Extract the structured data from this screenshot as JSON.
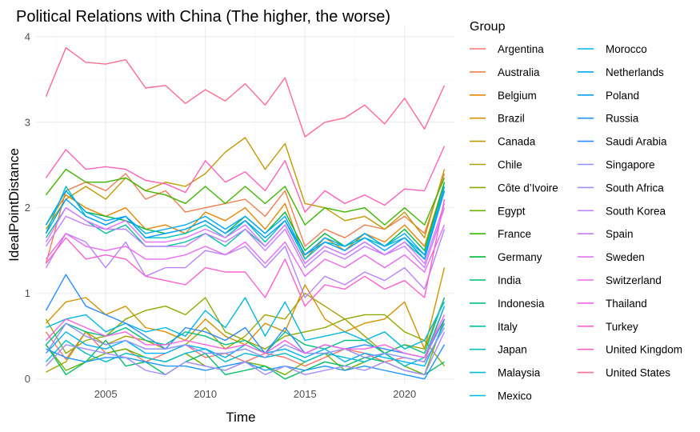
{
  "chart_data": {
    "type": "line",
    "title": "Political Relations with China (The higher, the worse)",
    "xlabel": "Time",
    "ylabel": "IdealPointDistance",
    "xlim": [
      2001.5,
      2022.5
    ],
    "ylim": [
      -0.05,
      4.12
    ],
    "x_ticks": [
      2005,
      2010,
      2015,
      2020
    ],
    "y_ticks": [
      0,
      1,
      2,
      3,
      4
    ],
    "grid": true,
    "legend_title": "Group",
    "legend_position": "right",
    "x": [
      2002,
      2003,
      2004,
      2005,
      2006,
      2007,
      2008,
      2009,
      2010,
      2011,
      2012,
      2013,
      2014,
      2015,
      2016,
      2017,
      2018,
      2019,
      2020,
      2021,
      2022
    ],
    "series": [
      {
        "name": "Argentina",
        "color": "#F8766D",
        "values": [
          0.55,
          0.23,
          0.55,
          0.3,
          0.35,
          0.2,
          0.3,
          0.4,
          0.25,
          0.3,
          0.2,
          0.3,
          0.25,
          0.15,
          0.25,
          0.35,
          0.3,
          0.2,
          0.25,
          0.2,
          0.85
        ]
      },
      {
        "name": "Australia",
        "color": "#F07E4E",
        "values": [
          1.35,
          2.2,
          2.3,
          2.2,
          2.4,
          2.1,
          2.2,
          1.95,
          2.0,
          2.05,
          2.1,
          1.9,
          2.2,
          1.55,
          1.75,
          1.65,
          1.8,
          1.75,
          1.9,
          1.7,
          2.4
        ]
      },
      {
        "name": "Belgium",
        "color": "#E58700",
        "values": [
          1.8,
          2.15,
          2.0,
          1.9,
          2.0,
          1.75,
          1.8,
          1.7,
          1.95,
          1.85,
          2.0,
          1.75,
          2.05,
          1.4,
          1.65,
          1.5,
          1.7,
          1.6,
          1.8,
          1.55,
          2.3
        ]
      },
      {
        "name": "Brazil",
        "color": "#D39200",
        "values": [
          0.65,
          0.9,
          0.95,
          0.75,
          0.85,
          0.6,
          0.55,
          0.45,
          0.7,
          0.5,
          0.4,
          0.65,
          0.55,
          1.1,
          0.7,
          0.55,
          0.65,
          0.7,
          0.9,
          0.35,
          1.3
        ]
      },
      {
        "name": "Canada",
        "color": "#C09A00",
        "values": [
          1.75,
          2.1,
          2.25,
          2.1,
          2.35,
          2.2,
          2.3,
          2.25,
          2.4,
          2.65,
          2.82,
          2.45,
          2.75,
          2.05,
          2.0,
          1.85,
          1.9,
          1.75,
          1.95,
          1.65,
          2.45
        ]
      },
      {
        "name": "Chile",
        "color": "#A8A200",
        "values": [
          0.08,
          0.2,
          0.55,
          0.4,
          0.5,
          0.45,
          0.35,
          0.4,
          0.6,
          0.35,
          0.5,
          0.75,
          0.7,
          1.0,
          0.85,
          0.7,
          0.5,
          0.3,
          0.4,
          0.35,
          0.95
        ]
      },
      {
        "name": "Côte d’Ivoire",
        "color": "#8EAA00",
        "values": [
          0.7,
          0.3,
          0.45,
          0.5,
          0.7,
          0.8,
          0.85,
          0.75,
          0.95,
          0.55,
          0.45,
          0.35,
          0.5,
          0.55,
          0.6,
          0.7,
          0.75,
          0.75,
          0.55,
          0.45,
          0.15
        ]
      },
      {
        "name": "Egypt",
        "color": "#6BB100",
        "values": [
          0.4,
          0.1,
          0.2,
          0.3,
          0.35,
          0.25,
          0.2,
          0.3,
          0.15,
          0.1,
          0.2,
          0.15,
          0.05,
          0.2,
          0.3,
          0.1,
          0.2,
          0.3,
          0.15,
          0.05,
          0.7
        ]
      },
      {
        "name": "France",
        "color": "#3DB700",
        "values": [
          2.15,
          2.45,
          2.3,
          2.3,
          2.35,
          2.2,
          2.15,
          2.05,
          2.25,
          2.05,
          2.25,
          2.05,
          2.25,
          1.8,
          2.0,
          1.95,
          2.0,
          1.8,
          2.0,
          1.8,
          2.35
        ]
      },
      {
        "name": "Germany",
        "color": "#00BA38",
        "values": [
          1.8,
          2.2,
          1.95,
          1.9,
          1.85,
          1.75,
          1.7,
          1.75,
          1.85,
          1.7,
          1.9,
          1.7,
          1.95,
          1.5,
          1.7,
          1.55,
          1.7,
          1.55,
          1.75,
          1.5,
          2.3
        ]
      },
      {
        "name": "India",
        "color": "#00BE67",
        "values": [
          0.4,
          0.05,
          0.2,
          0.45,
          0.15,
          0.2,
          0.05,
          0.2,
          0.3,
          0.05,
          0.1,
          0.15,
          0.0,
          0.1,
          0.2,
          0.15,
          0.25,
          0.2,
          0.1,
          0.05,
          0.2
        ]
      },
      {
        "name": "Indonesia",
        "color": "#00C086",
        "values": [
          0.4,
          0.65,
          0.55,
          0.5,
          0.6,
          0.45,
          0.4,
          0.55,
          0.5,
          0.4,
          0.45,
          0.3,
          0.55,
          0.4,
          0.35,
          0.45,
          0.45,
          0.3,
          0.4,
          0.3,
          0.95
        ]
      },
      {
        "name": "Italy",
        "color": "#00C1A3",
        "values": [
          1.65,
          2.0,
          1.85,
          1.7,
          1.8,
          1.55,
          1.55,
          1.6,
          1.7,
          1.55,
          1.75,
          1.55,
          1.8,
          1.35,
          1.55,
          1.45,
          1.6,
          1.45,
          1.6,
          1.4,
          2.2
        ]
      },
      {
        "name": "Japan",
        "color": "#00C0BB",
        "values": [
          1.7,
          2.25,
          1.9,
          1.8,
          1.9,
          1.65,
          1.65,
          1.7,
          1.8,
          1.65,
          1.85,
          1.6,
          1.85,
          1.4,
          1.6,
          1.55,
          1.65,
          1.55,
          1.65,
          1.45,
          2.25
        ]
      },
      {
        "name": "Malaysia",
        "color": "#00BDD0",
        "values": [
          0.2,
          0.45,
          0.3,
          0.2,
          0.3,
          0.25,
          0.2,
          0.3,
          0.35,
          0.2,
          0.3,
          0.25,
          0.3,
          0.2,
          0.3,
          0.25,
          0.2,
          0.3,
          0.15,
          0.25,
          0.85
        ]
      },
      {
        "name": "Mexico",
        "color": "#00B8E3",
        "values": [
          0.6,
          0.7,
          0.75,
          0.55,
          0.65,
          0.55,
          0.6,
          0.5,
          0.8,
          0.6,
          0.95,
          0.5,
          0.9,
          0.45,
          0.5,
          0.55,
          0.45,
          0.55,
          0.35,
          0.45,
          0.9
        ]
      },
      {
        "name": "Morocco",
        "color": "#00B1F3",
        "values": [
          0.3,
          0.55,
          0.4,
          0.35,
          0.45,
          0.3,
          0.3,
          0.4,
          0.35,
          0.25,
          0.4,
          0.3,
          0.35,
          0.25,
          0.35,
          0.2,
          0.3,
          0.25,
          0.2,
          0.15,
          0.65
        ]
      },
      {
        "name": "Netherlands",
        "color": "#00A9FF",
        "values": [
          1.8,
          2.2,
          1.95,
          1.85,
          1.9,
          1.7,
          1.75,
          1.8,
          1.9,
          1.75,
          1.9,
          1.7,
          1.9,
          1.45,
          1.65,
          1.55,
          1.7,
          1.55,
          1.7,
          1.45,
          2.25
        ]
      },
      {
        "name": "Poland",
        "color": "#00A0FF",
        "values": [
          1.7,
          2.1,
          1.9,
          1.8,
          1.9,
          1.65,
          1.7,
          1.75,
          1.85,
          1.7,
          1.85,
          1.65,
          1.85,
          1.45,
          1.6,
          1.5,
          1.65,
          1.5,
          1.65,
          1.4,
          2.2
        ]
      },
      {
        "name": "Russia",
        "color": "#1C95FF",
        "values": [
          0.35,
          0.25,
          0.2,
          0.25,
          0.25,
          0.2,
          0.15,
          0.15,
          0.1,
          0.15,
          0.2,
          0.1,
          0.15,
          0.1,
          0.15,
          0.1,
          0.15,
          0.1,
          0.05,
          0.0,
          0.4
        ]
      },
      {
        "name": "Saudi Arabia",
        "color": "#2B8CFF",
        "values": [
          0.8,
          1.22,
          0.85,
          0.75,
          0.65,
          0.5,
          0.35,
          0.6,
          0.55,
          0.45,
          0.6,
          0.3,
          0.6,
          0.3,
          0.4,
          0.35,
          0.4,
          0.35,
          0.3,
          0.25,
          0.7
        ]
      },
      {
        "name": "Singapore",
        "color": "#8F91FF",
        "values": [
          0.3,
          0.65,
          0.5,
          0.4,
          0.45,
          0.35,
          0.35,
          0.4,
          0.3,
          0.3,
          0.35,
          0.25,
          0.4,
          0.3,
          0.3,
          0.35,
          0.25,
          0.3,
          0.25,
          0.2,
          0.6
        ]
      },
      {
        "name": "South Africa",
        "color": "#A68AFF",
        "values": [
          0.15,
          0.4,
          0.35,
          0.3,
          0.25,
          0.1,
          0.05,
          0.2,
          0.15,
          0.1,
          0.2,
          0.05,
          0.15,
          0.05,
          0.1,
          0.15,
          0.1,
          0.2,
          0.1,
          0.05,
          0.55
        ]
      },
      {
        "name": "South Korea",
        "color": "#B983FF",
        "values": [
          1.3,
          1.7,
          1.6,
          1.3,
          1.6,
          1.2,
          1.3,
          1.3,
          1.5,
          1.45,
          1.55,
          1.3,
          1.55,
          0.95,
          1.2,
          1.1,
          1.25,
          1.15,
          1.3,
          1.05,
          1.75
        ]
      },
      {
        "name": "Spain",
        "color": "#C77CFF",
        "values": [
          1.55,
          1.9,
          1.8,
          1.75,
          1.75,
          1.55,
          1.55,
          1.55,
          1.7,
          1.6,
          1.75,
          1.5,
          1.75,
          1.3,
          1.5,
          1.4,
          1.55,
          1.45,
          1.55,
          1.3,
          2.0
        ]
      },
      {
        "name": "Sweden",
        "color": "#E176FF",
        "values": [
          1.6,
          2.0,
          1.85,
          1.75,
          1.85,
          1.6,
          1.6,
          1.65,
          1.75,
          1.65,
          1.8,
          1.55,
          1.8,
          1.35,
          1.55,
          1.45,
          1.6,
          1.45,
          1.6,
          1.35,
          2.05
        ]
      },
      {
        "name": "Switzerland",
        "color": "#E96BF2",
        "values": [
          1.4,
          1.7,
          1.55,
          1.5,
          1.55,
          1.4,
          1.4,
          1.45,
          1.55,
          1.45,
          1.6,
          1.35,
          1.6,
          1.2,
          1.4,
          1.3,
          1.45,
          1.3,
          1.45,
          1.25,
          1.8
        ]
      },
      {
        "name": "Thailand",
        "color": "#F564E3",
        "values": [
          0.45,
          0.7,
          0.6,
          0.5,
          0.55,
          0.4,
          0.4,
          0.45,
          0.4,
          0.35,
          0.4,
          0.3,
          0.45,
          0.3,
          0.4,
          0.35,
          0.35,
          0.4,
          0.3,
          0.25,
          0.75
        ]
      },
      {
        "name": "Turkey",
        "color": "#FD61D1",
        "values": [
          1.35,
          1.65,
          1.4,
          1.45,
          1.4,
          1.2,
          1.15,
          1.1,
          1.3,
          1.25,
          1.25,
          0.95,
          1.4,
          0.85,
          1.1,
          1.05,
          1.2,
          1.05,
          1.15,
          0.95,
          2.1
        ]
      },
      {
        "name": "United Kingdom",
        "color": "#FF62BC",
        "values": [
          2.35,
          2.68,
          2.45,
          2.48,
          2.45,
          2.32,
          2.28,
          2.18,
          2.55,
          2.3,
          2.42,
          2.2,
          2.55,
          1.95,
          2.2,
          2.05,
          2.15,
          2.03,
          2.22,
          2.2,
          2.72
        ]
      },
      {
        "name": "United States",
        "color": "#FF6C91",
        "values": [
          3.3,
          3.87,
          3.7,
          3.68,
          3.73,
          3.4,
          3.43,
          3.22,
          3.38,
          3.25,
          3.45,
          3.2,
          3.52,
          2.83,
          3.0,
          3.05,
          3.2,
          2.98,
          3.28,
          2.92,
          3.43
        ]
      }
    ]
  }
}
